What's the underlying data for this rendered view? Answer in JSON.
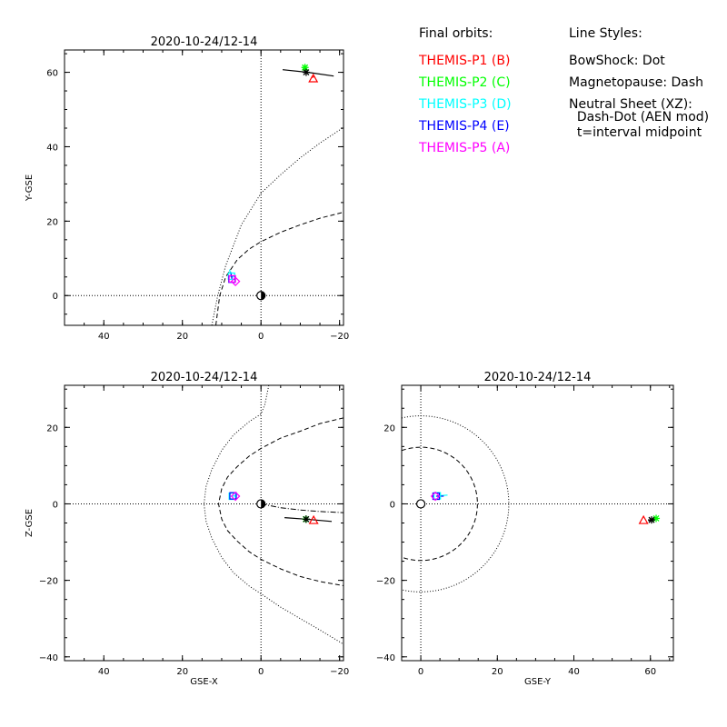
{
  "legend": {
    "orbits_title": "Final orbits:",
    "probes": [
      {
        "label": "THEMIS-P1 (B)",
        "color": "#ff0000"
      },
      {
        "label": "THEMIS-P2 (C)",
        "color": "#00ff00"
      },
      {
        "label": "THEMIS-P3 (D)",
        "color": "#00ffff"
      },
      {
        "label": "THEMIS-P4 (E)",
        "color": "#0000ff"
      },
      {
        "label": "THEMIS-P5 (A)",
        "color": "#ff00ff"
      }
    ],
    "styles_title": "Line Styles:",
    "styles": [
      "BowShock: Dot",
      "Magnetopause: Dash",
      "Neutral Sheet (XZ):",
      "  Dash-Dot (AEN mod)",
      "  t=interval midpoint"
    ]
  },
  "chart_data": [
    {
      "type": "line",
      "title": "2020-10-24/12-14",
      "xlabel": "",
      "ylabel": "Y-GSE",
      "xlim": [
        50,
        -21
      ],
      "ylim": [
        66,
        -8
      ],
      "xticks": [
        40,
        20,
        0,
        -20
      ],
      "xtick_labels": [
        "40",
        "20",
        "0",
        "−20"
      ],
      "yticks": [
        0,
        20,
        40,
        60
      ],
      "ytick_labels": [
        "0",
        "20",
        "40",
        "60"
      ],
      "grid": false,
      "bow_shock": {
        "x": [
          12.5,
          11,
          9,
          5,
          0,
          -5,
          -10,
          -15,
          -21
        ],
        "y": [
          -8,
          0,
          8,
          19,
          27.5,
          32.5,
          37,
          41,
          45.2
        ]
      },
      "magnetopause": {
        "x": [
          11.5,
          10.5,
          9,
          6,
          3,
          0,
          -5,
          -10,
          -15,
          -21
        ],
        "y": [
          -8,
          0,
          5,
          9.7,
          12.5,
          14.5,
          17,
          19,
          20.8,
          22.4
        ]
      },
      "earth": {
        "x": 0,
        "y": 0
      },
      "probe_markers": [
        {
          "probe": "P1",
          "marker": "triangle",
          "x": -13.3,
          "y": 58.3
        },
        {
          "probe": "P2",
          "marker": "asterisk",
          "x": -11.2,
          "y": 61.3
        },
        {
          "probe": "P3",
          "marker": "square",
          "x": 7.5,
          "y": 5.2
        },
        {
          "probe": "P4",
          "marker": "square",
          "x": 7.4,
          "y": 4.4
        },
        {
          "probe": "P5",
          "marker": "diamond",
          "x": 6.5,
          "y": 3.8
        },
        {
          "probe": "P5",
          "marker": "square",
          "x": 7.3,
          "y": 4.5
        }
      ],
      "probe_tracks": [
        {
          "probe": "P3",
          "x": [
            7.2,
            7.8,
            8.0
          ],
          "y": [
            4.8,
            6.0,
            7.0
          ]
        },
        {
          "probe": "P4",
          "x": [
            7.4,
            7.7
          ],
          "y": [
            4.4,
            6.3
          ]
        },
        {
          "probe": "P2",
          "x": [
            -10.5,
            -11.3
          ],
          "y": [
            60.5,
            61.8
          ]
        },
        {
          "probe": "P1",
          "x": [
            -12.8,
            -13.5
          ],
          "y": [
            58.6,
            58.8
          ]
        }
      ],
      "sun_track": {
        "x": [
          -5.5,
          -12,
          -18.5
        ],
        "y": [
          60.7,
          60.0,
          59.0
        ]
      },
      "sun_position": {
        "x": -11.5,
        "y": 60.0
      }
    },
    {
      "type": "line",
      "title": "2020-10-24/12-14",
      "xlabel": "GSE-X",
      "ylabel": "Z-GSE",
      "xlim": [
        50,
        -21
      ],
      "ylim": [
        31,
        -41
      ],
      "xticks": [
        40,
        20,
        0,
        -20
      ],
      "xtick_labels": [
        "40",
        "20",
        "0",
        "−20"
      ],
      "yticks": [
        20,
        0,
        -20,
        -40
      ],
      "ytick_labels": [
        "20",
        "0",
        "−20",
        "−40"
      ],
      "grid": false,
      "bow_shock": {
        "x": [
          -2,
          -1,
          0,
          3,
          7,
          10,
          12.5,
          14,
          14.5,
          14,
          12.5,
          10,
          7,
          3,
          0,
          -5,
          -10,
          -15,
          -21
        ],
        "y": [
          31,
          26,
          23.5,
          21.5,
          18,
          14,
          9,
          4.5,
          0,
          -4.5,
          -9,
          -14,
          -18,
          -21.5,
          -23.5,
          -27,
          -30,
          -33,
          -36.7
        ]
      },
      "magnetopause": {
        "x": [
          -21,
          -15,
          -10,
          -5,
          0,
          3,
          6,
          8.5,
          10,
          10.8,
          10,
          8.5,
          6,
          3,
          0,
          -5,
          -10,
          -15,
          -21
        ],
        "y": [
          22.5,
          21,
          19,
          17.2,
          14.5,
          12.5,
          9.8,
          7,
          4,
          0,
          -4,
          -7,
          -9.8,
          -12.5,
          -14.5,
          -17,
          -19,
          -20.3,
          -21.4
        ]
      },
      "neutral_sheet": {
        "x": [
          0,
          -5,
          -10,
          -15,
          -21
        ],
        "y": [
          0,
          -1,
          -1.6,
          -2.0,
          -2.3
        ]
      },
      "earth": {
        "x": 0,
        "y": 0
      },
      "probe_markers": [
        {
          "probe": "P1",
          "marker": "triangle",
          "x": -13.4,
          "y": -4.3
        },
        {
          "probe": "P2",
          "marker": "asterisk",
          "x": -11.4,
          "y": -4.0
        },
        {
          "probe": "P3",
          "marker": "square",
          "x": 7.3,
          "y": 2.0
        },
        {
          "probe": "P4",
          "marker": "square",
          "x": 7.1,
          "y": 2.1
        },
        {
          "probe": "P5",
          "marker": "diamond",
          "x": 6.5,
          "y": 2.0
        }
      ],
      "probe_tracks": [
        {
          "probe": "P3",
          "x": [
            7.3,
            6.6
          ],
          "y": [
            2.0,
            2.1
          ]
        }
      ],
      "sun_track": {
        "x": [
          -6,
          -11.5,
          -18
        ],
        "y": [
          -3.6,
          -4.0,
          -4.6
        ]
      },
      "sun_position": {
        "x": -11.5,
        "y": -4.0
      }
    },
    {
      "type": "line",
      "title": "2020-10-24/12-14",
      "xlabel": "GSE-Y",
      "ylabel": "",
      "xlim": [
        -5,
        66
      ],
      "ylim": [
        31,
        -41
      ],
      "xticks": [
        0,
        20,
        40,
        60
      ],
      "xtick_labels": [
        "0",
        "20",
        "40",
        "60"
      ],
      "yticks": [
        20,
        0,
        -20,
        -40
      ],
      "ytick_labels": [
        "20",
        "0",
        "−20",
        "−40"
      ],
      "grid": false,
      "bow_shock_radius": 23,
      "magnetopause_radius": 14.8,
      "earth": {
        "x": 0,
        "y": 0
      },
      "probe_markers": [
        {
          "probe": "P1",
          "marker": "triangle",
          "x": 58.2,
          "y": -4.3
        },
        {
          "probe": "P2",
          "marker": "asterisk",
          "x": 61.5,
          "y": -3.8
        },
        {
          "probe": "P3",
          "marker": "square",
          "x": 4.3,
          "y": 2.1
        },
        {
          "probe": "P4",
          "marker": "square",
          "x": 4.0,
          "y": 2.0
        },
        {
          "probe": "P5",
          "marker": "diamond",
          "x": 3.8,
          "y": 2.0
        }
      ],
      "probe_tracks": [
        {
          "probe": "P3",
          "x": [
            4.3,
            7.0
          ],
          "y": [
            2.1,
            2.3
          ]
        },
        {
          "probe": "P4",
          "x": [
            4.0,
            6.0
          ],
          "y": [
            2.0,
            2.0
          ]
        }
      ],
      "sun_track": {
        "x": [
          59.5,
          61.0
        ],
        "y": [
          -4.4,
          -4.0
        ]
      },
      "sun_position": {
        "x": 60.3,
        "y": -4.2
      }
    }
  ]
}
